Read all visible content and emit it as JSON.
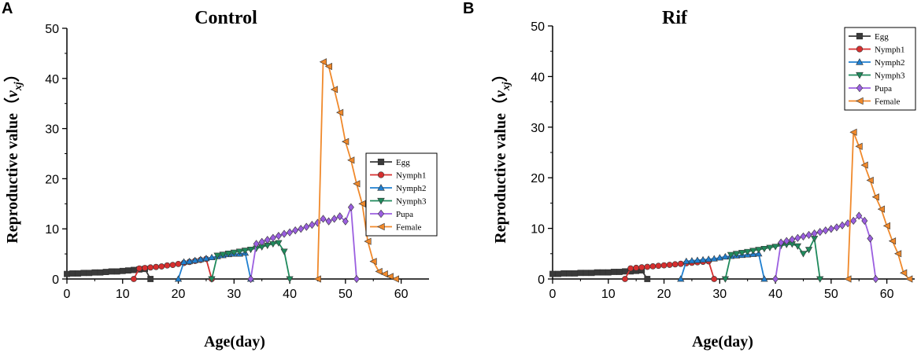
{
  "legend": {
    "entries": [
      "Egg",
      "Nymph1",
      "Nymph2",
      "Nymph3",
      "Pupa",
      "Female"
    ]
  },
  "series_colors": {
    "Egg": "#3a3a3a",
    "Nymph1": "#d62f2f",
    "Nymph2": "#1f7fd0",
    "Nymph3": "#1f8a5c",
    "Pupa": "#9b5fe0",
    "Female": "#f0892b"
  },
  "chart_data": [
    {
      "panel": "A",
      "type": "line",
      "title": "Control",
      "xlabel": "Age(day)",
      "ylabel": "Reproductive value（v_xj）",
      "ylabel_prefix": "Reproductive value（",
      "ylabel_var": "v",
      "ylabel_sub": "xj",
      "ylabel_suffix": "）",
      "xlim": [
        0,
        65
      ],
      "ylim": [
        0,
        50
      ],
      "xticks": [
        0,
        10,
        20,
        30,
        40,
        50,
        60
      ],
      "yticks": [
        0,
        10,
        20,
        30,
        40,
        50
      ],
      "series": [
        {
          "name": "Egg",
          "x": [
            0,
            1,
            2,
            3,
            4,
            5,
            6,
            7,
            8,
            9,
            10,
            11,
            12,
            13,
            14,
            15
          ],
          "y": [
            1.0,
            1.1,
            1.1,
            1.2,
            1.2,
            1.3,
            1.3,
            1.4,
            1.5,
            1.5,
            1.6,
            1.7,
            1.8,
            1.9,
            2.0,
            0
          ]
        },
        {
          "name": "Nymph1",
          "x": [
            12,
            13,
            14,
            15,
            16,
            17,
            18,
            19,
            20,
            21,
            22,
            23,
            24,
            25,
            26
          ],
          "y": [
            0,
            2.1,
            2.2,
            2.3,
            2.4,
            2.5,
            2.7,
            2.8,
            3.0,
            3.2,
            3.4,
            3.6,
            3.8,
            4.0,
            0
          ]
        },
        {
          "name": "Nymph2",
          "x": [
            20,
            21,
            22,
            23,
            24,
            25,
            26,
            27,
            28,
            29,
            30,
            31,
            32,
            33
          ],
          "y": [
            0,
            3.4,
            3.5,
            3.7,
            3.9,
            4.1,
            4.3,
            4.5,
            4.7,
            4.9,
            5.0,
            5.0,
            5.2,
            0
          ]
        },
        {
          "name": "Nymph3",
          "x": [
            26,
            27,
            28,
            29,
            30,
            31,
            32,
            33,
            34,
            35,
            36,
            37,
            38,
            39,
            40
          ],
          "y": [
            0,
            4.7,
            4.9,
            5.1,
            5.3,
            5.5,
            5.7,
            5.9,
            6.1,
            6.4,
            6.7,
            7.0,
            7.2,
            5.5,
            0
          ]
        },
        {
          "name": "Pupa",
          "x": [
            33,
            34,
            35,
            36,
            37,
            38,
            39,
            40,
            41,
            42,
            43,
            44,
            45,
            46,
            47,
            48,
            49,
            50,
            51,
            52
          ],
          "y": [
            0,
            7.0,
            7.4,
            7.8,
            8.2,
            8.6,
            9.0,
            9.3,
            9.7,
            10.0,
            10.4,
            10.8,
            11.2,
            12.0,
            11.5,
            12.0,
            12.5,
            11.5,
            14.3,
            0
          ]
        },
        {
          "name": "Female",
          "x": [
            45,
            46,
            47,
            48,
            49,
            50,
            51,
            52,
            53,
            54,
            55,
            56,
            57,
            58,
            59
          ],
          "y": [
            0,
            43.3,
            42.4,
            37.8,
            33.2,
            27.4,
            23.7,
            19.0,
            15.0,
            7.5,
            3.5,
            1.5,
            1.0,
            0.5,
            0
          ]
        }
      ]
    },
    {
      "panel": "B",
      "type": "line",
      "title": "Rif",
      "xlabel": "Age(day)",
      "ylabel": "Reproductive value（v_xj）",
      "ylabel_prefix": "Reproductive value（",
      "ylabel_var": "v",
      "ylabel_sub": "xj",
      "ylabel_suffix": "）",
      "xlim": [
        0,
        65
      ],
      "ylim": [
        0,
        50
      ],
      "xticks": [
        0,
        10,
        20,
        30,
        40,
        50,
        60
      ],
      "yticks": [
        0,
        10,
        20,
        30,
        40,
        50
      ],
      "series": [
        {
          "name": "Egg",
          "x": [
            0,
            1,
            2,
            3,
            4,
            5,
            6,
            7,
            8,
            9,
            10,
            11,
            12,
            13,
            14,
            15,
            16,
            17
          ],
          "y": [
            1.0,
            1.0,
            1.1,
            1.1,
            1.1,
            1.2,
            1.2,
            1.2,
            1.3,
            1.3,
            1.3,
            1.4,
            1.4,
            1.5,
            1.5,
            1.6,
            1.7,
            0
          ]
        },
        {
          "name": "Nymph1",
          "x": [
            13,
            14,
            15,
            16,
            17,
            18,
            19,
            20,
            21,
            22,
            23,
            24,
            25,
            26,
            27,
            28,
            29
          ],
          "y": [
            0,
            2.1,
            2.2,
            2.3,
            2.4,
            2.5,
            2.6,
            2.7,
            2.8,
            2.9,
            3.0,
            3.1,
            3.2,
            3.3,
            3.4,
            3.5,
            0
          ]
        },
        {
          "name": "Nymph2",
          "x": [
            23,
            24,
            25,
            26,
            27,
            28,
            29,
            30,
            31,
            32,
            33,
            34,
            35,
            36,
            37,
            38
          ],
          "y": [
            0,
            3.5,
            3.6,
            3.7,
            3.8,
            3.9,
            4.0,
            4.2,
            4.4,
            4.5,
            4.6,
            4.7,
            4.8,
            4.9,
            5.0,
            0
          ]
        },
        {
          "name": "Nymph3",
          "x": [
            31,
            32,
            33,
            34,
            35,
            36,
            37,
            38,
            39,
            40,
            41,
            42,
            43,
            44,
            45,
            46,
            47,
            48
          ],
          "y": [
            0,
            4.8,
            5.0,
            5.2,
            5.4,
            5.6,
            5.8,
            6.0,
            6.2,
            6.4,
            6.6,
            6.8,
            6.9,
            6.5,
            5.0,
            5.8,
            8.0,
            0
          ]
        },
        {
          "name": "Pupa",
          "x": [
            40,
            41,
            42,
            43,
            44,
            45,
            46,
            47,
            48,
            49,
            50,
            51,
            52,
            53,
            54,
            55,
            56,
            57,
            58
          ],
          "y": [
            0,
            7.2,
            7.5,
            7.8,
            8.1,
            8.4,
            8.7,
            9.0,
            9.3,
            9.6,
            9.9,
            10.2,
            10.6,
            11.0,
            11.5,
            12.5,
            11.5,
            8.0,
            0
          ]
        },
        {
          "name": "Female",
          "x": [
            53,
            54,
            55,
            56,
            57,
            58,
            59,
            60,
            61,
            62,
            63,
            64
          ],
          "y": [
            0,
            29.0,
            26.2,
            22.5,
            19.5,
            16.2,
            13.8,
            10.5,
            7.5,
            5.0,
            1.2,
            0
          ]
        }
      ]
    }
  ]
}
